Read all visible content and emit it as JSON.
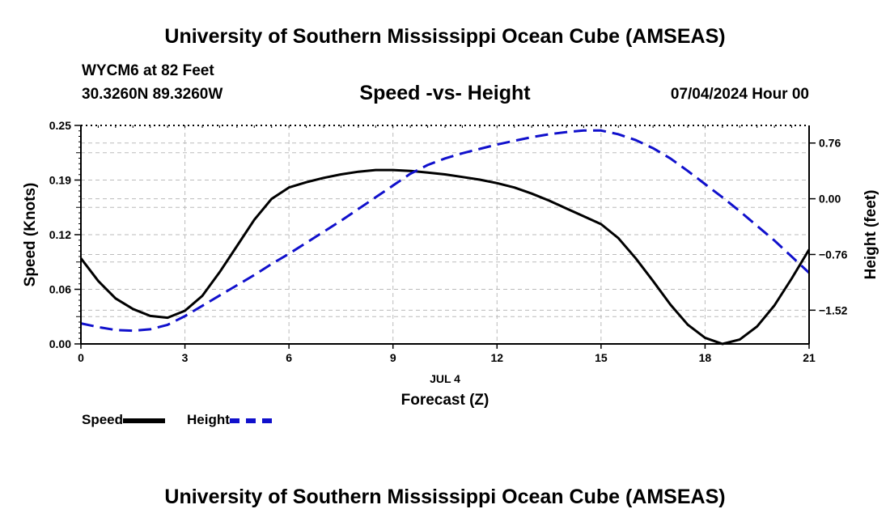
{
  "header": {
    "title": "University of Southern Mississippi Ocean Cube (AMSEAS)",
    "station": "WYCM6 at 82 Feet",
    "coords": "30.3260N  89.3260W",
    "subtitle": "Speed -vs- Height",
    "datetime": "07/04/2024 Hour 00"
  },
  "footer": {
    "title": "University of Southern Mississippi Ocean Cube (AMSEAS)"
  },
  "legend": {
    "speed_label": "Speed",
    "height_label": "Height"
  },
  "colors": {
    "speed": "#000000",
    "height": "#1010cc",
    "grid": "#bbbbbb"
  },
  "chart_data": {
    "type": "line",
    "title": "Speed -vs- Height",
    "xlabel": "Forecast (Z)",
    "xlabel_date": "JUL 4",
    "ylabel_left": "Speed (Knots)",
    "ylabel_right": "Height (feet)",
    "xlim": [
      0,
      21
    ],
    "ylim_left": [
      0,
      0.25
    ],
    "ylim_right": [
      -1.98,
      1.0
    ],
    "x_ticks": [
      0,
      3,
      6,
      9,
      12,
      15,
      18,
      21
    ],
    "x_tick_labels": [
      "0",
      "3",
      "6",
      "9",
      "12",
      "15",
      "18",
      "21"
    ],
    "y_left_ticks": [
      0,
      0.0625,
      0.125,
      0.1875,
      0.25
    ],
    "y_left_tick_labels": [
      "0.00",
      "0.06",
      "0.12",
      "0.19",
      "0.25"
    ],
    "y_right_ticks": [
      0.76,
      0.0,
      -0.76,
      -1.52
    ],
    "y_right_tick_labels": [
      "0.76",
      "0.00",
      "−0.76",
      "−1.52"
    ],
    "series": [
      {
        "name": "Speed",
        "axis": "left",
        "style": "solid",
        "x": [
          0,
          0.5,
          1,
          1.5,
          2,
          2.5,
          3,
          3.5,
          4,
          4.5,
          5,
          5.5,
          6,
          6.5,
          7,
          7.5,
          8,
          8.5,
          9,
          9.5,
          10,
          10.5,
          11,
          11.5,
          12,
          12.5,
          13,
          13.5,
          14,
          14.5,
          15,
          15.5,
          16,
          16.5,
          17,
          17.5,
          18,
          18.5,
          19,
          19.5,
          20,
          20.5,
          21
        ],
        "values": [
          0.098,
          0.072,
          0.052,
          0.04,
          0.032,
          0.03,
          0.038,
          0.055,
          0.082,
          0.112,
          0.142,
          0.166,
          0.179,
          0.185,
          0.19,
          0.194,
          0.197,
          0.199,
          0.199,
          0.198,
          0.196,
          0.194,
          0.191,
          0.188,
          0.184,
          0.179,
          0.172,
          0.164,
          0.155,
          0.146,
          0.137,
          0.121,
          0.098,
          0.072,
          0.045,
          0.022,
          0.007,
          0.0,
          0.005,
          0.02,
          0.044,
          0.075,
          0.108
        ]
      },
      {
        "name": "Height",
        "axis": "right",
        "style": "dashed",
        "x": [
          0,
          0.5,
          1,
          1.5,
          2,
          2.5,
          3,
          3.5,
          4,
          4.5,
          5,
          5.5,
          6,
          6.5,
          7,
          7.5,
          8,
          8.5,
          9,
          9.5,
          10,
          10.5,
          11,
          11.5,
          12,
          12.5,
          13,
          13.5,
          14,
          14.5,
          15,
          15.5,
          16,
          16.5,
          17,
          17.5,
          18,
          18.5,
          19,
          19.5,
          20,
          20.5,
          21
        ],
        "values": [
          -1.7,
          -1.75,
          -1.79,
          -1.8,
          -1.78,
          -1.72,
          -1.6,
          -1.46,
          -1.32,
          -1.18,
          -1.04,
          -0.89,
          -0.75,
          -0.6,
          -0.45,
          -0.3,
          -0.14,
          0.02,
          0.18,
          0.34,
          0.46,
          0.55,
          0.62,
          0.68,
          0.74,
          0.79,
          0.84,
          0.88,
          0.91,
          0.93,
          0.93,
          0.88,
          0.8,
          0.69,
          0.55,
          0.38,
          0.2,
          0.02,
          -0.17,
          -0.37,
          -0.57,
          -0.79,
          -1.01
        ]
      }
    ]
  }
}
